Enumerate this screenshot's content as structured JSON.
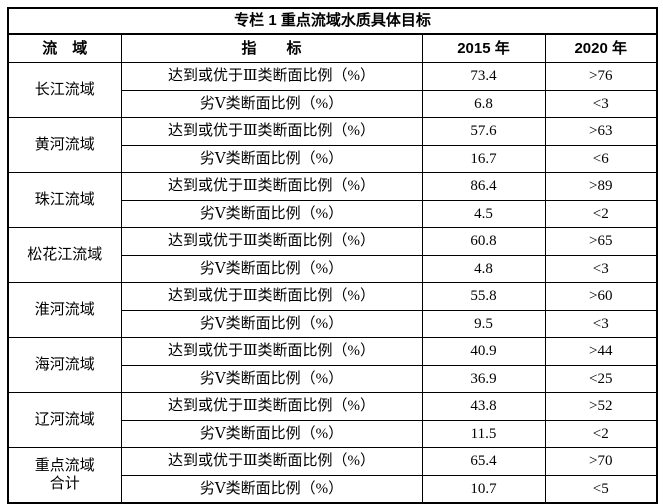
{
  "table": {
    "title": "专栏 1  重点流域水质具体目标",
    "headers": [
      "流　域",
      "指　　标",
      "2015 年",
      "2020 年"
    ],
    "indicators": [
      "达到或优于Ⅲ类断面比例（%）",
      "劣Ⅴ类断面比例（%）"
    ],
    "groups": [
      {
        "basin": "长江流域",
        "values_2015": [
          "73.4",
          "6.8"
        ],
        "values_2020": [
          ">76",
          "<3"
        ]
      },
      {
        "basin": "黄河流域",
        "values_2015": [
          "57.6",
          "16.7"
        ],
        "values_2020": [
          ">63",
          "<6"
        ]
      },
      {
        "basin": "珠江流域",
        "values_2015": [
          "86.4",
          "4.5"
        ],
        "values_2020": [
          ">89",
          "<2"
        ]
      },
      {
        "basin": "松花江流域",
        "values_2015": [
          "60.8",
          "4.8"
        ],
        "values_2020": [
          ">65",
          "<3"
        ]
      },
      {
        "basin": "淮河流域",
        "values_2015": [
          "55.8",
          "9.5"
        ],
        "values_2020": [
          ">60",
          "<3"
        ]
      },
      {
        "basin": "海河流域",
        "values_2015": [
          "40.9",
          "36.9"
        ],
        "values_2020": [
          ">44",
          "<25"
        ]
      },
      {
        "basin": "辽河流域",
        "values_2015": [
          "43.8",
          "11.5"
        ],
        "values_2020": [
          ">52",
          "<2"
        ]
      },
      {
        "basin": "重点流域\n合计",
        "values_2015": [
          "65.4",
          "10.7"
        ],
        "values_2020": [
          ">70",
          "<5"
        ]
      }
    ],
    "colors": {
      "border": "#000000",
      "text": "#000000",
      "background": "#ffffff"
    }
  }
}
